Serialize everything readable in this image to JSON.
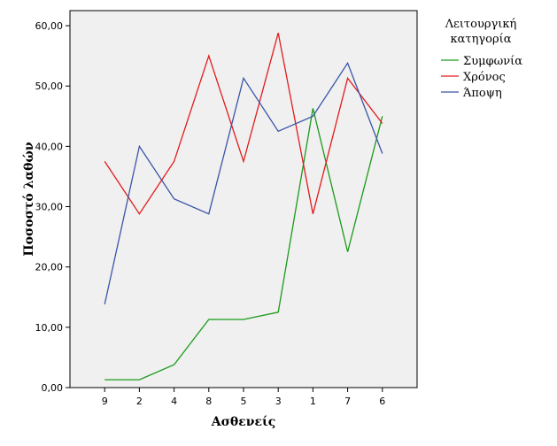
{
  "chart_data": {
    "type": "line",
    "categories": [
      "9",
      "2",
      "4",
      "8",
      "5",
      "3",
      "1",
      "7",
      "6"
    ],
    "xlabel": "Ασθενείς",
    "ylabel": "Ποσοστό λαθών",
    "ylim": [
      0,
      62.5
    ],
    "y_ticks": [
      "0,00",
      "10,00",
      "20,00",
      "30,00",
      "40,00",
      "50,00",
      "60,00"
    ],
    "grid": false,
    "legend": {
      "title_line1": "Λειτουργική",
      "title_line2": "κατηγορία",
      "placement": "right"
    },
    "series": [
      {
        "name": "Συμφωνία",
        "color": "#1a9a1a",
        "values": [
          1.3,
          1.3,
          3.8,
          11.3,
          11.3,
          12.5,
          46.3,
          22.5,
          45.0
        ]
      },
      {
        "name": "Χρόνος",
        "color": "#e31a1c",
        "values": [
          37.5,
          28.8,
          37.5,
          55.0,
          37.5,
          58.8,
          28.8,
          51.3,
          43.8
        ]
      },
      {
        "name": "Άποψη",
        "color": "#3a55a8",
        "values": [
          13.8,
          40.0,
          31.3,
          28.8,
          51.3,
          42.5,
          45.0,
          53.8,
          38.8
        ]
      }
    ]
  }
}
